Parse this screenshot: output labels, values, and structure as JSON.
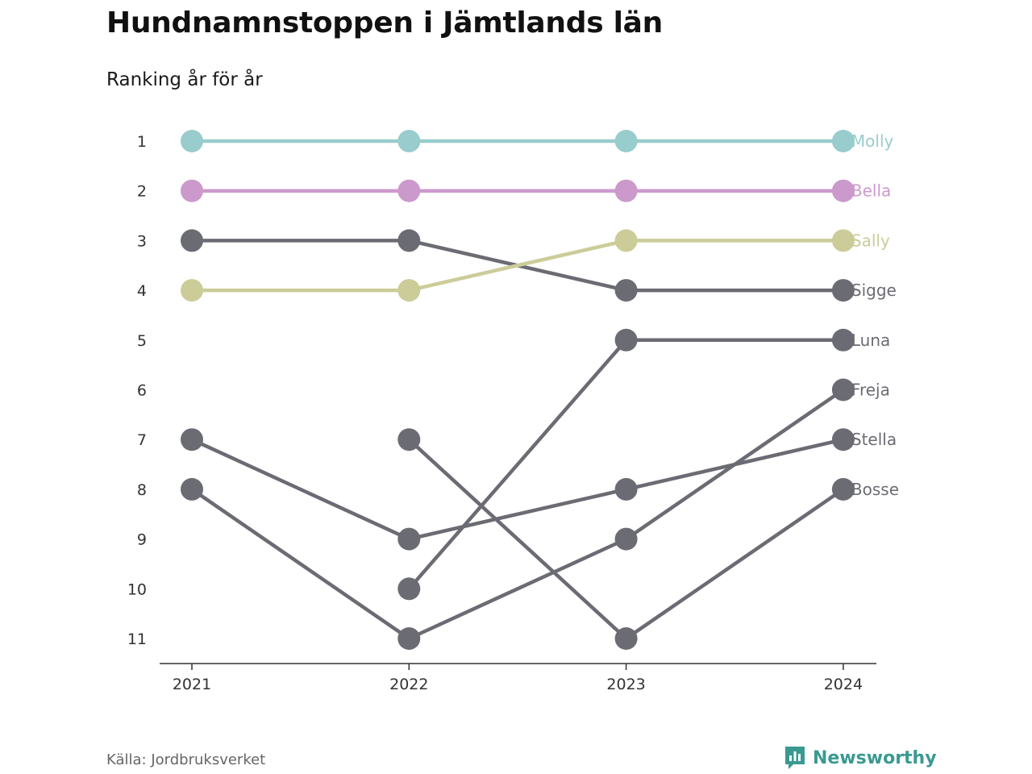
{
  "header": {
    "title": "Hundnamnstoppen i Jämtlands län",
    "subtitle": "Ranking år för år"
  },
  "footer": {
    "source": "Källa: Jordbruksverket",
    "brand": "Newsworthy",
    "brand_icon": "bar-chart-icon",
    "brand_color": "#3a9a92"
  },
  "chart_data": {
    "type": "line",
    "subtype": "bump",
    "x": [
      "2021",
      "2022",
      "2023",
      "2024"
    ],
    "y_ticks": [
      1,
      2,
      3,
      4,
      5,
      6,
      7,
      8,
      9,
      10,
      11
    ],
    "ylim": [
      11,
      1
    ],
    "y_inverted": true,
    "grid": false,
    "legend": "direct labels at line ends",
    "series": [
      {
        "name": "Molly",
        "values": [
          1,
          1,
          1,
          1
        ],
        "color": "#99cccc"
      },
      {
        "name": "Bella",
        "values": [
          2,
          2,
          2,
          2
        ],
        "color": "#cc99cc"
      },
      {
        "name": "Sally",
        "values": [
          4,
          4,
          3,
          3
        ],
        "color": "#cccc99"
      },
      {
        "name": "Sigge",
        "values": [
          3,
          3,
          4,
          4
        ],
        "color": "#6b6b73"
      },
      {
        "name": "Luna",
        "values": [
          null,
          10,
          5,
          5
        ],
        "color": "#6b6b73"
      },
      {
        "name": "Freja",
        "values": [
          8,
          11,
          9,
          6
        ],
        "color": "#6b6b73"
      },
      {
        "name": "Stella",
        "values": [
          7,
          9,
          8,
          7
        ],
        "color": "#6b6b73"
      },
      {
        "name": "Bosse",
        "values": [
          null,
          7,
          11,
          8
        ],
        "color": "#6b6b73"
      }
    ]
  }
}
